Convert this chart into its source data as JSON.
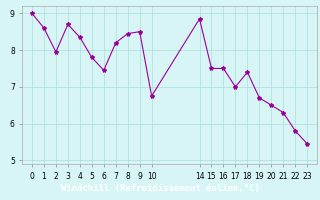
{
  "x_values": [
    0,
    1,
    2,
    3,
    4,
    5,
    6,
    7,
    8,
    9,
    10,
    14,
    15,
    16,
    17,
    18,
    19,
    20,
    21,
    22,
    23
  ],
  "y_values": [
    9.0,
    8.6,
    7.95,
    8.7,
    8.35,
    7.8,
    7.45,
    8.2,
    8.45,
    8.5,
    6.75,
    8.85,
    7.5,
    7.5,
    7.0,
    7.4,
    6.7,
    6.5,
    6.3,
    5.8,
    5.45
  ],
  "line_color": "#990099",
  "marker": "*",
  "marker_size": 3,
  "bg_color": "#d8f5f5",
  "grid_color": "#aadddd",
  "xlabel": "Windchill (Refroidissement éolien,°C)",
  "xlabel_color": "#ffffff",
  "xlabel_bg": "#660066",
  "ylim": [
    4.9,
    9.2
  ],
  "yticks": [
    5,
    6,
    7,
    8,
    9
  ],
  "xticks": [
    0,
    1,
    2,
    3,
    4,
    5,
    6,
    7,
    8,
    9,
    10,
    14,
    15,
    16,
    17,
    18,
    19,
    20,
    21,
    22,
    23
  ],
  "tick_label_size": 5.5,
  "xlabel_fontsize": 6.5,
  "xlim": [
    -0.8,
    23.8
  ]
}
